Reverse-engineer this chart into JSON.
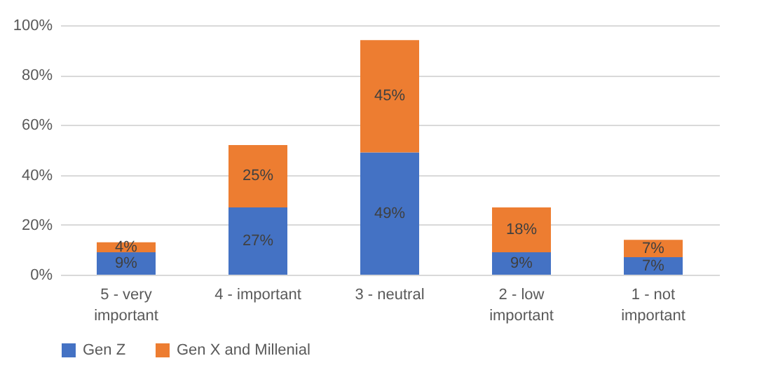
{
  "chart_data": {
    "type": "bar",
    "stacked": true,
    "categories": [
      "5 - very important",
      "4 - important",
      "3 - neutral",
      "2 - low important",
      "1 - not important"
    ],
    "series": [
      {
        "name": "Gen Z",
        "color": "#4472c4",
        "values": [
          9,
          27,
          49,
          9,
          7
        ],
        "value_labels": [
          "9%",
          "27%",
          "49%",
          "9%",
          "7%"
        ]
      },
      {
        "name": "Gen X and Millenial",
        "color": "#ed7d31",
        "values": [
          4,
          25,
          45,
          18,
          7
        ],
        "value_labels": [
          "4%",
          "25%",
          "45%",
          "18%",
          "7%"
        ]
      }
    ],
    "ylim": [
      0,
      100
    ],
    "yticks": [
      {
        "value": 0,
        "label": "0%"
      },
      {
        "value": 20,
        "label": "20%"
      },
      {
        "value": 40,
        "label": "40%"
      },
      {
        "value": 60,
        "label": "60%"
      },
      {
        "value": 80,
        "label": "80%"
      },
      {
        "value": 100,
        "label": "100%"
      }
    ],
    "grid": "y",
    "legend": "bottom"
  }
}
